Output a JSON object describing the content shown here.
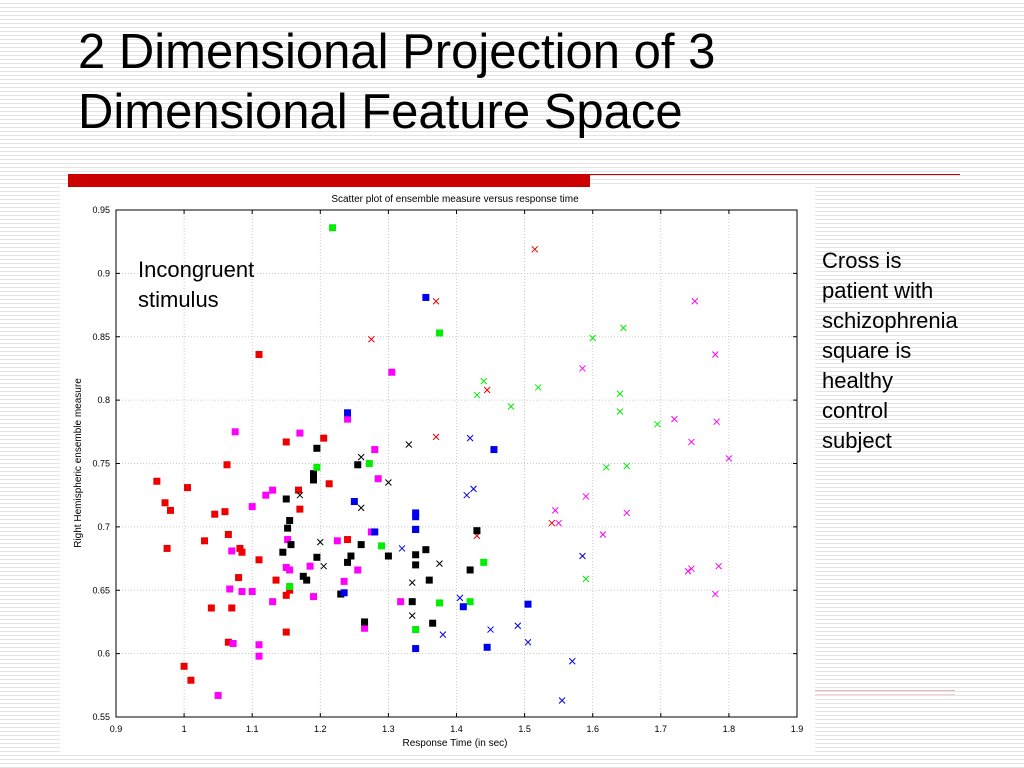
{
  "slide": {
    "title_line1": "2 Dimensional Projection of 3",
    "title_line2": "Dimensional Feature Space",
    "annotation_lines": [
      "Cross is",
      "patient with",
      "schizophrenia",
      "square is",
      "healthy",
      "control",
      "subject"
    ]
  },
  "chart_data": {
    "type": "scatter",
    "title": "Scatter plot of ensemble measure versus response time",
    "xlabel": "Response Time (in sec)",
    "ylabel": "Right Hemispheric ensemble measure",
    "annotation": [
      "Incongruent",
      "stimulus"
    ],
    "xlim": [
      0.9,
      1.9
    ],
    "ylim": [
      0.55,
      0.95
    ],
    "xticks": [
      "0.9",
      "1",
      "1.1",
      "1.2",
      "1.3",
      "1.4",
      "1.5",
      "1.6",
      "1.7",
      "1.8",
      "1.9"
    ],
    "yticks": [
      "0.55",
      "0.6",
      "0.65",
      "0.7",
      "0.75",
      "0.8",
      "0.85",
      "0.9",
      "0.95"
    ],
    "grid": true,
    "colors": {
      "red": "#ee0000",
      "magenta": "#ff00ff",
      "black": "#000000",
      "green": "#00ee00",
      "blue": "#0000ee"
    },
    "series": [
      {
        "color": "red",
        "marker": "square",
        "points": [
          [
            0.96,
            0.736
          ],
          [
            0.972,
            0.719
          ],
          [
            0.975,
            0.683
          ],
          [
            0.98,
            0.713
          ],
          [
            1.0,
            0.59
          ],
          [
            1.005,
            0.731
          ],
          [
            1.01,
            0.579
          ],
          [
            1.03,
            0.689
          ],
          [
            1.04,
            0.636
          ],
          [
            1.045,
            0.71
          ],
          [
            1.06,
            0.712
          ],
          [
            1.063,
            0.749
          ],
          [
            1.065,
            0.694
          ],
          [
            1.065,
            0.609
          ],
          [
            1.07,
            0.636
          ],
          [
            1.08,
            0.66
          ],
          [
            1.082,
            0.683
          ],
          [
            1.085,
            0.68
          ],
          [
            1.11,
            0.836
          ],
          [
            1.11,
            0.674
          ],
          [
            1.135,
            0.658
          ],
          [
            1.15,
            0.617
          ],
          [
            1.15,
            0.767
          ],
          [
            1.15,
            0.646
          ],
          [
            1.155,
            0.65
          ],
          [
            1.168,
            0.729
          ],
          [
            1.17,
            0.714
          ],
          [
            1.205,
            0.77
          ],
          [
            1.213,
            0.734
          ],
          [
            1.24,
            0.69
          ]
        ]
      },
      {
        "color": "red",
        "marker": "cross",
        "points": [
          [
            1.275,
            0.848
          ],
          [
            1.37,
            0.878
          ],
          [
            1.37,
            0.771
          ],
          [
            1.43,
            0.693
          ],
          [
            1.445,
            0.808
          ],
          [
            1.515,
            0.919
          ],
          [
            1.54,
            0.703
          ]
        ]
      },
      {
        "color": "magenta",
        "marker": "square",
        "points": [
          [
            1.05,
            0.567
          ],
          [
            1.067,
            0.651
          ],
          [
            1.07,
            0.681
          ],
          [
            1.072,
            0.608
          ],
          [
            1.075,
            0.775
          ],
          [
            1.085,
            0.649
          ],
          [
            1.1,
            0.649
          ],
          [
            1.1,
            0.716
          ],
          [
            1.11,
            0.607
          ],
          [
            1.11,
            0.598
          ],
          [
            1.12,
            0.725
          ],
          [
            1.13,
            0.641
          ],
          [
            1.13,
            0.729
          ],
          [
            1.15,
            0.668
          ],
          [
            1.152,
            0.69
          ],
          [
            1.155,
            0.666
          ],
          [
            1.17,
            0.774
          ],
          [
            1.185,
            0.669
          ],
          [
            1.19,
            0.645
          ],
          [
            1.225,
            0.689
          ],
          [
            1.235,
            0.657
          ],
          [
            1.24,
            0.785
          ],
          [
            1.255,
            0.666
          ],
          [
            1.265,
            0.62
          ],
          [
            1.275,
            0.696
          ],
          [
            1.28,
            0.761
          ],
          [
            1.285,
            0.738
          ],
          [
            1.305,
            0.822
          ],
          [
            1.318,
            0.641
          ]
        ]
      },
      {
        "color": "magenta",
        "marker": "cross",
        "points": [
          [
            1.545,
            0.713
          ],
          [
            1.55,
            0.703
          ],
          [
            1.585,
            0.825
          ],
          [
            1.59,
            0.724
          ],
          [
            1.615,
            0.694
          ],
          [
            1.65,
            0.711
          ],
          [
            1.72,
            0.785
          ],
          [
            1.74,
            0.665
          ],
          [
            1.745,
            0.767
          ],
          [
            1.745,
            0.667
          ],
          [
            1.75,
            0.878
          ],
          [
            1.78,
            0.836
          ],
          [
            1.78,
            0.647
          ],
          [
            1.782,
            0.783
          ],
          [
            1.785,
            0.669
          ],
          [
            1.8,
            0.754
          ]
        ]
      },
      {
        "color": "black",
        "marker": "square",
        "points": [
          [
            1.145,
            0.68
          ],
          [
            1.15,
            0.722
          ],
          [
            1.152,
            0.699
          ],
          [
            1.155,
            0.705
          ],
          [
            1.157,
            0.686
          ],
          [
            1.175,
            0.661
          ],
          [
            1.18,
            0.658
          ],
          [
            1.19,
            0.742
          ],
          [
            1.19,
            0.737
          ],
          [
            1.195,
            0.762
          ],
          [
            1.195,
            0.676
          ],
          [
            1.23,
            0.647
          ],
          [
            1.24,
            0.672
          ],
          [
            1.245,
            0.677
          ],
          [
            1.255,
            0.749
          ],
          [
            1.26,
            0.686
          ],
          [
            1.265,
            0.625
          ],
          [
            1.3,
            0.677
          ],
          [
            1.335,
            0.641
          ],
          [
            1.34,
            0.698
          ],
          [
            1.34,
            0.67
          ],
          [
            1.34,
            0.678
          ],
          [
            1.355,
            0.682
          ],
          [
            1.36,
            0.658
          ],
          [
            1.365,
            0.624
          ],
          [
            1.42,
            0.666
          ],
          [
            1.43,
            0.697
          ]
        ]
      },
      {
        "color": "black",
        "marker": "cross",
        "points": [
          [
            1.17,
            0.725
          ],
          [
            1.2,
            0.688
          ],
          [
            1.205,
            0.669
          ],
          [
            1.26,
            0.715
          ],
          [
            1.26,
            0.755
          ],
          [
            1.3,
            0.735
          ],
          [
            1.33,
            0.765
          ],
          [
            1.335,
            0.656
          ],
          [
            1.335,
            0.63
          ],
          [
            1.375,
            0.671
          ]
        ]
      },
      {
        "color": "green",
        "marker": "square",
        "points": [
          [
            1.218,
            0.936
          ],
          [
            1.155,
            0.653
          ],
          [
            1.195,
            0.747
          ],
          [
            1.272,
            0.75
          ],
          [
            1.29,
            0.685
          ],
          [
            1.375,
            0.853
          ],
          [
            1.34,
            0.619
          ],
          [
            1.375,
            0.64
          ],
          [
            1.42,
            0.641
          ],
          [
            1.44,
            0.672
          ]
        ]
      },
      {
        "color": "green",
        "marker": "cross",
        "points": [
          [
            1.43,
            0.804
          ],
          [
            1.44,
            0.815
          ],
          [
            1.48,
            0.795
          ],
          [
            1.52,
            0.81
          ],
          [
            1.59,
            0.659
          ],
          [
            1.6,
            0.849
          ],
          [
            1.62,
            0.747
          ],
          [
            1.64,
            0.805
          ],
          [
            1.64,
            0.791
          ],
          [
            1.645,
            0.857
          ],
          [
            1.65,
            0.748
          ],
          [
            1.695,
            0.781
          ]
        ]
      },
      {
        "color": "blue",
        "marker": "square",
        "points": [
          [
            1.235,
            0.648
          ],
          [
            1.24,
            0.79
          ],
          [
            1.25,
            0.72
          ],
          [
            1.28,
            0.696
          ],
          [
            1.34,
            0.711
          ],
          [
            1.34,
            0.708
          ],
          [
            1.34,
            0.604
          ],
          [
            1.34,
            0.698
          ],
          [
            1.355,
            0.881
          ],
          [
            1.41,
            0.637
          ],
          [
            1.445,
            0.605
          ],
          [
            1.455,
            0.761
          ],
          [
            1.505,
            0.639
          ]
        ]
      },
      {
        "color": "blue",
        "marker": "cross",
        "points": [
          [
            1.32,
            0.683
          ],
          [
            1.38,
            0.615
          ],
          [
            1.405,
            0.644
          ],
          [
            1.415,
            0.725
          ],
          [
            1.42,
            0.77
          ],
          [
            1.425,
            0.73
          ],
          [
            1.45,
            0.619
          ],
          [
            1.49,
            0.622
          ],
          [
            1.505,
            0.609
          ],
          [
            1.555,
            0.563
          ],
          [
            1.57,
            0.594
          ],
          [
            1.585,
            0.677
          ]
        ]
      }
    ]
  }
}
